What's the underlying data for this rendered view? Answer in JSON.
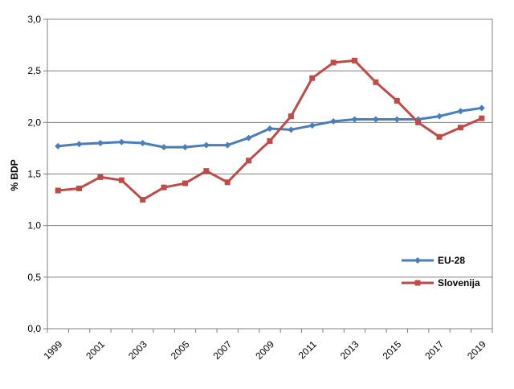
{
  "chart_data": {
    "type": "line",
    "title": "",
    "xlabel": "",
    "ylabel": "% BDP",
    "ylim": [
      0,
      3
    ],
    "y_ticks": [
      "0,0",
      "0,5",
      "1,0",
      "1,5",
      "2,0",
      "2,5",
      "3,0"
    ],
    "x": [
      "1999",
      "2000",
      "2001",
      "2002",
      "2003",
      "2004",
      "2005",
      "2006",
      "2007",
      "2008",
      "2009",
      "2010",
      "2011",
      "2012",
      "2013",
      "2014",
      "2015",
      "2016",
      "2017",
      "2018",
      "2019"
    ],
    "x_tick_labels": [
      "1999",
      "2001",
      "2003",
      "2005",
      "2007",
      "2009",
      "2011",
      "2013",
      "2015",
      "2017",
      "2019"
    ],
    "grid": true,
    "legend_position": "right",
    "series": [
      {
        "name": "EU-28",
        "color": "#4a7ebb",
        "marker": "diamond",
        "values": [
          1.77,
          1.79,
          1.8,
          1.81,
          1.8,
          1.76,
          1.76,
          1.78,
          1.78,
          1.85,
          1.94,
          1.93,
          1.97,
          2.01,
          2.03,
          2.03,
          2.03,
          2.03,
          2.06,
          2.11,
          2.14
        ]
      },
      {
        "name": "Slovenija",
        "color": "#be4b48",
        "marker": "square",
        "values": [
          1.34,
          1.36,
          1.47,
          1.44,
          1.25,
          1.37,
          1.41,
          1.53,
          1.42,
          1.63,
          1.82,
          2.06,
          2.43,
          2.58,
          2.6,
          2.39,
          2.21,
          2.0,
          1.86,
          1.95,
          2.04
        ]
      }
    ]
  }
}
